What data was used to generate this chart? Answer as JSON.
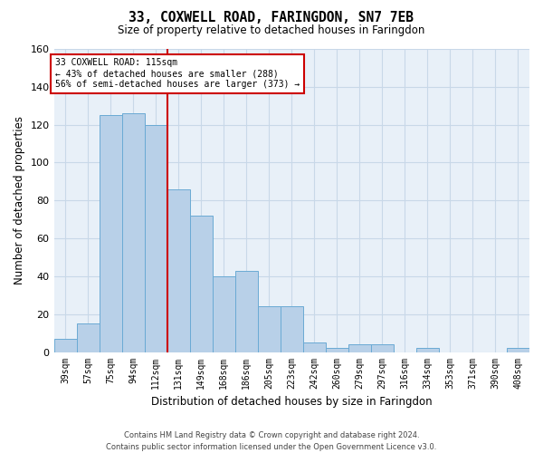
{
  "title_line1": "33, COXWELL ROAD, FARINGDON, SN7 7EB",
  "title_line2": "Size of property relative to detached houses in Faringdon",
  "xlabel": "Distribution of detached houses by size in Faringdon",
  "ylabel": "Number of detached properties",
  "categories": [
    "39sqm",
    "57sqm",
    "75sqm",
    "94sqm",
    "112sqm",
    "131sqm",
    "149sqm",
    "168sqm",
    "186sqm",
    "205sqm",
    "223sqm",
    "242sqm",
    "260sqm",
    "279sqm",
    "297sqm",
    "316sqm",
    "334sqm",
    "353sqm",
    "371sqm",
    "390sqm",
    "408sqm"
  ],
  "values": [
    7,
    15,
    125,
    126,
    120,
    86,
    72,
    40,
    43,
    24,
    24,
    5,
    2,
    4,
    4,
    0,
    2,
    0,
    0,
    0,
    2
  ],
  "bar_color": "#b8d0e8",
  "bar_edge_color": "#6aaad4",
  "annotation_text_line1": "33 COXWELL ROAD: 115sqm",
  "annotation_text_line2": "← 43% of detached houses are smaller (288)",
  "annotation_text_line3": "56% of semi-detached houses are larger (373) →",
  "annotation_box_color": "#ffffff",
  "annotation_box_edge": "#cc0000",
  "subject_line_color": "#cc0000",
  "grid_color": "#c8d8e8",
  "bg_color": "#e8f0f8",
  "ylim": [
    0,
    160
  ],
  "yticks": [
    0,
    20,
    40,
    60,
    80,
    100,
    120,
    140,
    160
  ],
  "footer_line1": "Contains HM Land Registry data © Crown copyright and database right 2024.",
  "footer_line2": "Contains public sector information licensed under the Open Government Licence v3.0."
}
